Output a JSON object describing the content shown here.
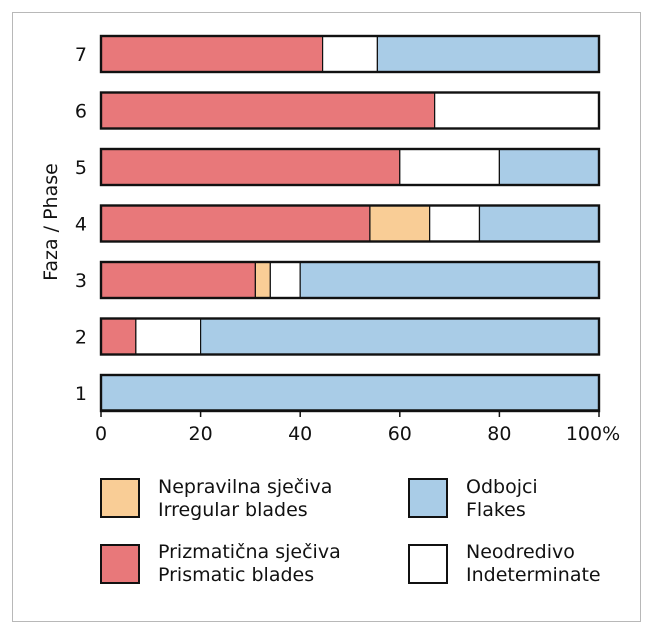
{
  "chart_data": {
    "type": "bar",
    "orientation": "horizontal",
    "stacked": true,
    "ylabel": "Faza / Phase",
    "categories": [
      "7",
      "6",
      "5",
      "4",
      "3",
      "2",
      "1"
    ],
    "xlim": [
      0,
      100
    ],
    "x_ticks": [
      "0",
      "20",
      "40",
      "60",
      "80",
      "100%"
    ],
    "series": [
      {
        "key": "prismatic",
        "color": "#E8787A",
        "values": [
          44.5,
          67,
          60,
          54,
          31,
          7,
          0
        ]
      },
      {
        "key": "irregular",
        "color": "#F9CD96",
        "values": [
          0,
          0,
          0,
          12,
          3,
          0,
          0
        ]
      },
      {
        "key": "indeterminate",
        "color": "#FFFFFF",
        "values": [
          11,
          33,
          20,
          10,
          6,
          13,
          0
        ]
      },
      {
        "key": "flakes",
        "color": "#A9CCE7",
        "values": [
          44.5,
          0,
          20,
          24,
          60,
          80,
          100
        ]
      }
    ]
  },
  "legend": {
    "irregular": {
      "line1": "Nepravilna sječiva",
      "line2": "Irregular blades",
      "color": "#F9CD96"
    },
    "flakes": {
      "line1": "Odbojci",
      "line2": "Flakes",
      "color": "#A9CCE7"
    },
    "prismatic": {
      "line1": "Prizmatična sječiva",
      "line2": "Prismatic blades",
      "color": "#E8787A"
    },
    "indeterminate": {
      "line1": "Neodredivo",
      "line2": "Indeterminate",
      "color": "#FFFFFF"
    }
  }
}
